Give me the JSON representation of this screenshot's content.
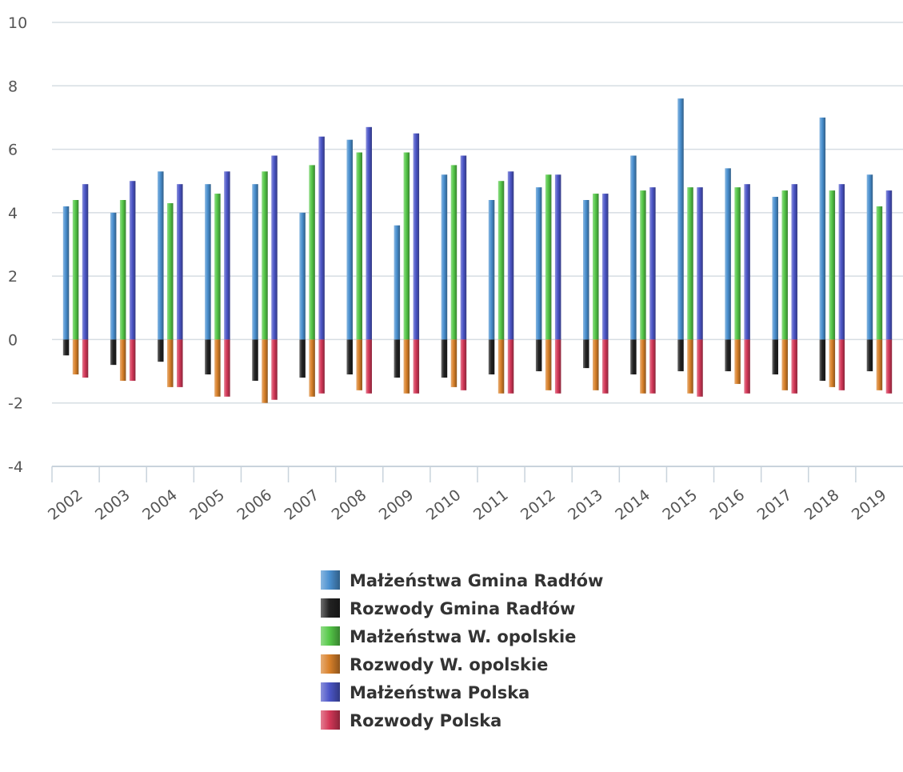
{
  "chart_data": {
    "type": "bar",
    "title": "",
    "xlabel": "",
    "ylabel": "",
    "ylim": [
      -4,
      10
    ],
    "y_ticks": [
      10,
      8,
      6,
      4,
      2,
      0,
      -2,
      -4
    ],
    "y_tick_labels": [
      "10",
      "8",
      "6",
      "4",
      "2",
      "0",
      "-2",
      "-4"
    ],
    "grid": true,
    "legend_position": "bottom-center",
    "categories": [
      "2002",
      "2003",
      "2004",
      "2005",
      "2006",
      "2007",
      "2008",
      "2009",
      "2010",
      "2011",
      "2012",
      "2013",
      "2014",
      "2015",
      "2016",
      "2017",
      "2018",
      "2019"
    ],
    "series": [
      {
        "name": "Małżeństwa Gmina Radłów",
        "color": "#4a90d0",
        "values": [
          4.2,
          4.0,
          5.3,
          4.9,
          4.9,
          4.0,
          6.3,
          3.6,
          5.2,
          4.4,
          4.8,
          4.4,
          5.8,
          7.6,
          5.4,
          4.5,
          7.0,
          5.2
        ]
      },
      {
        "name": "Rozwody Gmina Radłów",
        "color": "#222222",
        "values": [
          -0.5,
          -0.8,
          -0.7,
          -1.1,
          -1.3,
          -1.2,
          -1.1,
          -1.2,
          -1.2,
          -1.1,
          -1.0,
          -0.9,
          -1.1,
          -1.0,
          -1.0,
          -1.1,
          -1.3,
          -1.0
        ]
      },
      {
        "name": "Małżeństwa W. opolskie",
        "color": "#55c848",
        "values": [
          4.4,
          4.4,
          4.3,
          4.6,
          5.3,
          5.5,
          5.9,
          5.9,
          5.5,
          5.0,
          5.2,
          4.6,
          4.7,
          4.8,
          4.8,
          4.7,
          4.7,
          4.2
        ]
      },
      {
        "name": "Rozwody W. opolskie",
        "color": "#d9812a",
        "values": [
          -1.1,
          -1.3,
          -1.5,
          -1.8,
          -2.0,
          -1.8,
          -1.6,
          -1.7,
          -1.5,
          -1.7,
          -1.6,
          -1.6,
          -1.7,
          -1.7,
          -1.4,
          -1.6,
          -1.5,
          -1.6
        ]
      },
      {
        "name": "Małżeństwa Polska",
        "color": "#4c56c8",
        "values": [
          4.9,
          5.0,
          4.9,
          5.3,
          5.8,
          6.4,
          6.7,
          6.5,
          5.8,
          5.3,
          5.2,
          4.6,
          4.8,
          4.8,
          4.9,
          4.9,
          4.9,
          4.7
        ]
      },
      {
        "name": "Rozwody Polska",
        "color": "#d43858",
        "values": [
          -1.2,
          -1.3,
          -1.5,
          -1.8,
          -1.9,
          -1.7,
          -1.7,
          -1.7,
          -1.6,
          -1.7,
          -1.7,
          -1.7,
          -1.7,
          -1.8,
          -1.7,
          -1.7,
          -1.6,
          -1.7
        ]
      }
    ]
  }
}
